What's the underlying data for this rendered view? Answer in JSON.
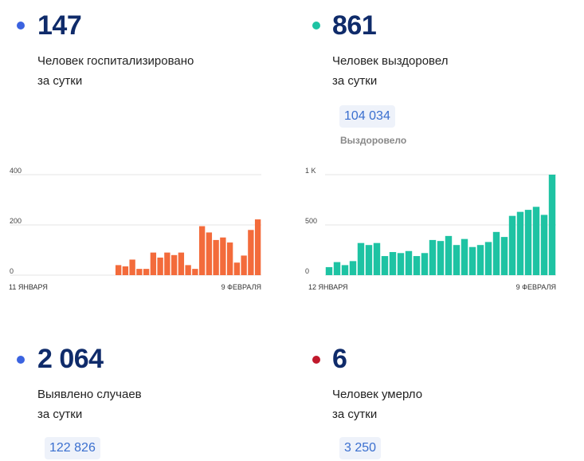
{
  "cards": {
    "hospitalized": {
      "value": "147",
      "line1": "Человек госпитализировано",
      "line2": "за сутки",
      "dot_color": "#3b63e0"
    },
    "recovered": {
      "value": "861",
      "line1": "Человек выздоровел",
      "line2": "за сутки",
      "dot_color": "#1ec3a3",
      "total": "104 034",
      "total_label": "Выздоровело"
    },
    "cases": {
      "value": "2 064",
      "line1": "Выявлено случаев",
      "line2": "за сутки",
      "dot_color": "#3b63e0",
      "total": "122 826"
    },
    "deaths": {
      "value": "6",
      "line1": "Человек умерло",
      "line2": "за сутки",
      "dot_color": "#c0182b",
      "total": "3 250"
    }
  },
  "chart_data": [
    {
      "type": "bar",
      "color": "#f36b3b",
      "y_ticks": [
        "0",
        "200",
        "400"
      ],
      "ylim": [
        0,
        400
      ],
      "x_start_label": "11 ЯНВАРЯ",
      "x_end_label": "9 ФЕВРАЛЯ",
      "values": [
        null,
        null,
        null,
        null,
        null,
        null,
        null,
        null,
        null,
        null,
        null,
        null,
        null,
        null,
        null,
        40,
        35,
        62,
        25,
        25,
        90,
        70,
        90,
        80,
        90,
        40,
        25,
        195,
        170,
        140,
        150,
        130,
        50,
        78,
        180,
        222
      ]
    },
    {
      "type": "bar",
      "color": "#1ec3a3",
      "y_ticks": [
        "0",
        "500",
        "1 K"
      ],
      "ylim": [
        0,
        1000
      ],
      "x_start_label": "12 ЯНВАРЯ",
      "x_end_label": "9 ФЕВРАЛЯ",
      "values": [
        80,
        130,
        100,
        140,
        320,
        300,
        320,
        190,
        230,
        220,
        240,
        190,
        220,
        350,
        340,
        390,
        300,
        360,
        280,
        300,
        330,
        430,
        380,
        590,
        630,
        650,
        680,
        600,
        1000
      ]
    }
  ]
}
